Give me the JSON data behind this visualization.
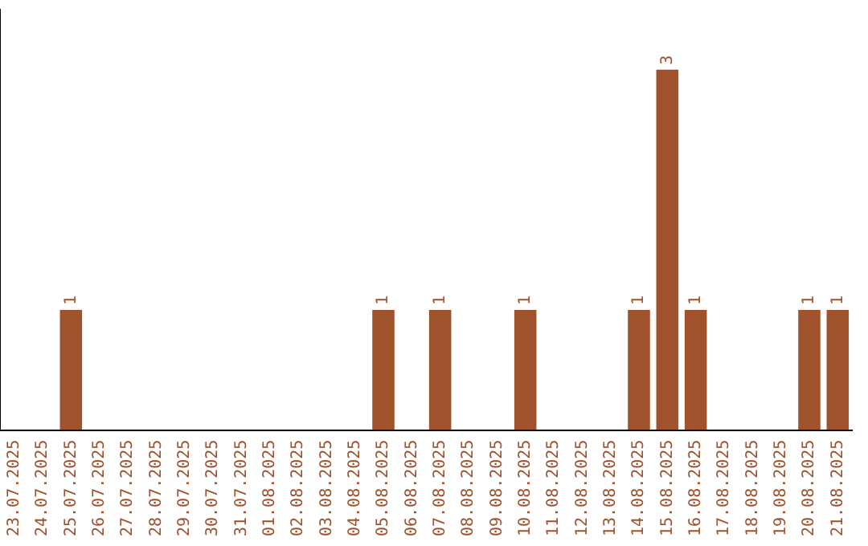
{
  "chart_data": {
    "type": "bar",
    "categories": [
      "23.07.2025",
      "24.07.2025",
      "25.07.2025",
      "26.07.2025",
      "27.07.2025",
      "28.07.2025",
      "29.07.2025",
      "30.07.2025",
      "31.07.2025",
      "01.08.2025",
      "02.08.2025",
      "03.08.2025",
      "04.08.2025",
      "05.08.2025",
      "06.08.2025",
      "07.08.2025",
      "08.08.2025",
      "09.08.2025",
      "10.08.2025",
      "11.08.2025",
      "12.08.2025",
      "13.08.2025",
      "14.08.2025",
      "15.08.2025",
      "16.08.2025",
      "17.08.2025",
      "18.08.2025",
      "19.08.2025",
      "20.08.2025",
      "21.08.2025"
    ],
    "values": [
      0,
      0,
      1,
      0,
      0,
      0,
      0,
      0,
      0,
      0,
      0,
      0,
      0,
      1,
      0,
      1,
      0,
      0,
      1,
      0,
      0,
      0,
      1,
      3,
      1,
      0,
      0,
      0,
      1,
      1
    ],
    "value_labels": [
      null,
      null,
      "1",
      null,
      null,
      null,
      null,
      null,
      null,
      null,
      null,
      null,
      null,
      "1",
      null,
      "1",
      null,
      null,
      "1",
      null,
      null,
      null,
      "1",
      "3",
      "1",
      null,
      null,
      null,
      "1",
      "1"
    ],
    "color": "#a0522d",
    "tick_labels": "x",
    "grid": false,
    "legend": false
  }
}
